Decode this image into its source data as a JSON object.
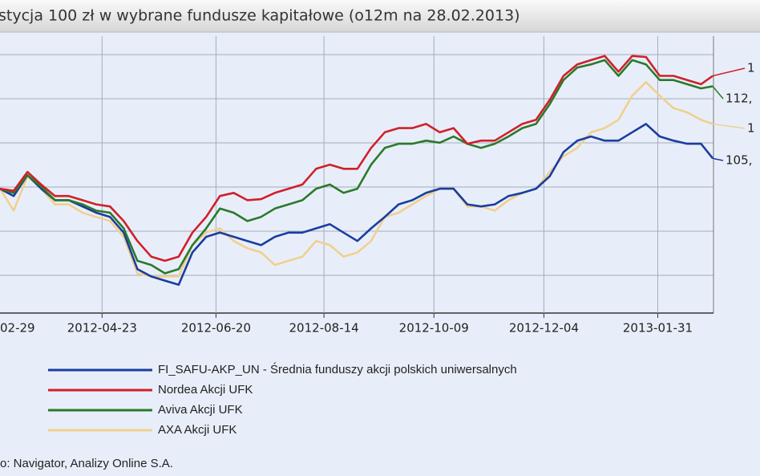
{
  "chart_data": {
    "type": "line",
    "title": "stycja 100 zł w wybrane fundusze kapitałowe (o12m na 28.02.2013)",
    "source": "o: Navigator, Analizy Online S.A.",
    "x": [
      "2012-03-02",
      "2012-03-09",
      "2012-03-16",
      "2012-03-23",
      "2012-03-30",
      "2012-04-06",
      "2012-04-13",
      "2012-04-20",
      "2012-04-27",
      "2012-05-04",
      "2012-05-11",
      "2012-05-18",
      "2012-05-25",
      "2012-06-01",
      "2012-06-08",
      "2012-06-15",
      "2012-06-22",
      "2012-06-29",
      "2012-07-06",
      "2012-07-13",
      "2012-07-20",
      "2012-07-27",
      "2012-08-03",
      "2012-08-10",
      "2012-08-17",
      "2012-08-24",
      "2012-08-31",
      "2012-09-07",
      "2012-09-14",
      "2012-09-21",
      "2012-09-28",
      "2012-10-05",
      "2012-10-12",
      "2012-10-19",
      "2012-10-26",
      "2012-11-02",
      "2012-11-09",
      "2012-11-16",
      "2012-11-23",
      "2012-11-30",
      "2012-12-07",
      "2012-12-14",
      "2012-12-21",
      "2012-12-28",
      "2013-01-04",
      "2013-01-11",
      "2013-01-18",
      "2013-01-25",
      "2013-02-01",
      "2013-02-08",
      "2013-02-15",
      "2013-02-22",
      "2013-02-28"
    ],
    "xlim": [
      "2012-03-02",
      "2013-03-01"
    ],
    "xticks": [
      {
        "value": "2012-02-29",
        "label": "02-29"
      },
      "2012-04-23",
      "2012-06-20",
      "2012-08-14",
      "2012-10-09",
      "2012-12-04",
      "2013-01-31"
    ],
    "ylim": [
      90.5,
      117.0
    ],
    "grid": true,
    "series": [
      {
        "name": "FI_SAFU-AKP_UN - Średnia funduszy akcji polskich uniwersalnych",
        "color": "#1a3da0",
        "end_label": "105,",
        "values": [
          102.4,
          101.7,
          103.7,
          102.4,
          101.3,
          101.3,
          100.7,
          100.1,
          99.7,
          98.2,
          94.7,
          94.0,
          93.6,
          93.2,
          96.3,
          97.8,
          98.2,
          97.8,
          97.4,
          97.0,
          97.8,
          98.2,
          98.2,
          98.6,
          99.0,
          98.2,
          97.4,
          98.6,
          99.7,
          100.9,
          101.3,
          102.0,
          102.4,
          102.4,
          100.9,
          100.7,
          100.9,
          101.7,
          102.0,
          102.4,
          103.6,
          105.9,
          107.0,
          107.4,
          107.0,
          107.0,
          107.8,
          108.6,
          107.4,
          107.0,
          106.7,
          106.7,
          105.3
        ]
      },
      {
        "name": "Nordea Akcji UFK",
        "color": "#d0202a",
        "end_label": "1",
        "values": [
          102.4,
          102.2,
          104.0,
          102.8,
          101.7,
          101.7,
          101.3,
          100.9,
          100.7,
          99.3,
          97.4,
          95.9,
          95.5,
          95.9,
          98.2,
          99.7,
          101.7,
          102.0,
          101.3,
          101.4,
          102.0,
          102.4,
          102.8,
          104.3,
          104.7,
          104.3,
          104.3,
          106.3,
          107.8,
          108.2,
          108.2,
          108.6,
          107.8,
          108.2,
          106.7,
          107.0,
          107.0,
          107.8,
          108.6,
          109.0,
          110.9,
          113.2,
          114.3,
          114.7,
          115.1,
          113.6,
          115.1,
          115.0,
          113.2,
          113.2,
          112.8,
          112.4,
          113.2
        ]
      },
      {
        "name": "Aviva Akcji UFK",
        "color": "#2a7a2a",
        "end_label": "112,",
        "values": [
          102.4,
          102.0,
          103.7,
          102.6,
          101.3,
          101.3,
          100.9,
          100.3,
          100.1,
          98.6,
          95.5,
          95.1,
          94.3,
          94.7,
          97.0,
          98.6,
          100.5,
          100.1,
          99.3,
          99.7,
          100.5,
          100.9,
          101.3,
          102.4,
          102.8,
          102.0,
          102.4,
          104.7,
          106.3,
          106.7,
          106.7,
          107.0,
          106.8,
          107.4,
          106.7,
          106.3,
          106.7,
          107.4,
          108.2,
          108.6,
          110.5,
          112.8,
          114.0,
          114.3,
          114.7,
          113.2,
          114.7,
          114.3,
          112.8,
          112.8,
          112.4,
          112.0,
          112.2
        ]
      },
      {
        "name": "AXA Akcji UFK",
        "color": "#f0d090",
        "end_label": "1",
        "values": [
          102.4,
          100.3,
          103.6,
          102.4,
          100.9,
          100.9,
          100.1,
          99.7,
          99.3,
          97.8,
          94.3,
          94.0,
          94.0,
          94.0,
          97.0,
          98.2,
          98.6,
          97.4,
          96.7,
          96.3,
          95.1,
          95.5,
          95.9,
          97.4,
          97.0,
          95.9,
          96.3,
          97.4,
          99.7,
          100.1,
          100.9,
          101.7,
          102.4,
          102.4,
          100.7,
          100.7,
          100.3,
          101.3,
          102.0,
          102.4,
          104.0,
          105.5,
          106.3,
          107.8,
          108.2,
          109.0,
          111.3,
          112.6,
          111.3,
          110.1,
          109.7,
          109.0,
          108.6
        ]
      }
    ]
  }
}
